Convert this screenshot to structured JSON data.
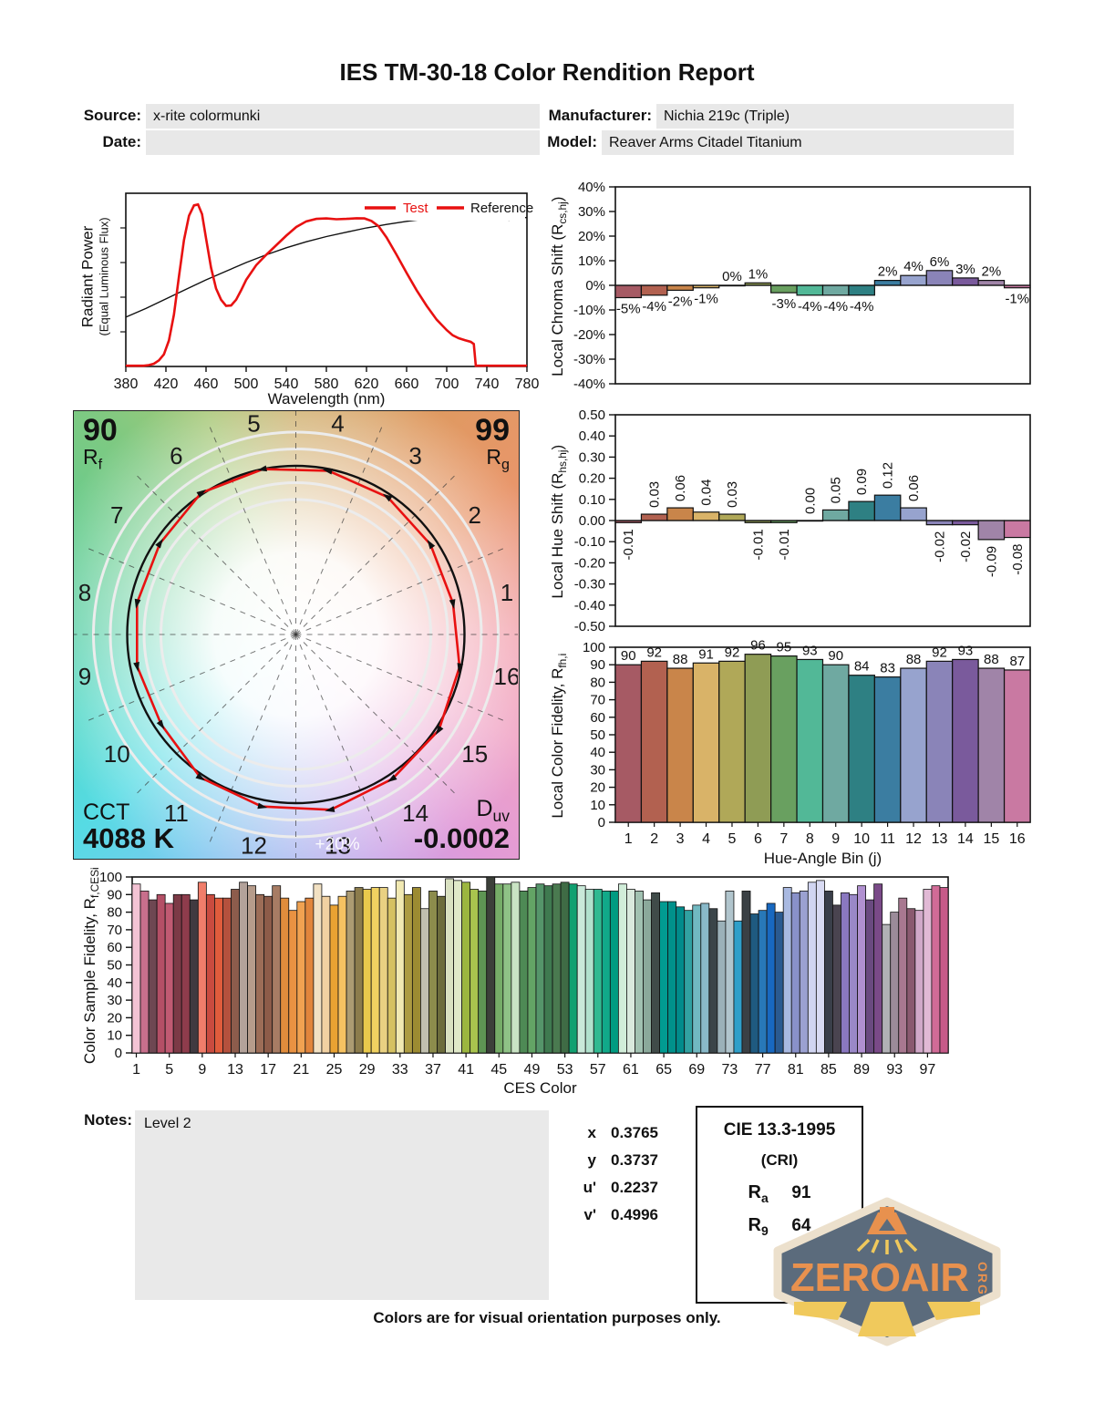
{
  "title": "IES TM-30-18 Color Rendition Report",
  "header": {
    "source_label": "Source:",
    "source_value": "x-rite colormunki",
    "manufacturer_label": "Manufacturer:",
    "manufacturer_value": "Nichia 219c (Triple)",
    "date_label": "Date:",
    "date_value": "",
    "model_label": "Model:",
    "model_value": "Reaver Arms Citadel Titanium"
  },
  "cvg": {
    "rf_value": "90",
    "rf_letter": "R",
    "rf_sub": "f",
    "rg_value": "99",
    "rg_letter": "R",
    "rg_sub": "g",
    "cct_label": "CCT",
    "cct_value": "4088 K",
    "duv_letter": "D",
    "duv_sub": "uv",
    "duv_value": "-0.0002",
    "ring_label": "+20%",
    "bins": [
      "1",
      "2",
      "3",
      "4",
      "5",
      "6",
      "7",
      "8",
      "9",
      "10",
      "11",
      "12",
      "13",
      "14",
      "15",
      "16"
    ]
  },
  "hue_bin_colors": [
    "#a65a64",
    "#b26150",
    "#c9854a",
    "#d9b368",
    "#b0a858",
    "#8f9c55",
    "#69a060",
    "#52b897",
    "#6fa9a1",
    "#2e8083",
    "#3b7da1",
    "#97a3ce",
    "#8a84b8",
    "#7a5a9c",
    "#a084a8",
    "#c979a2"
  ],
  "chart_data": {
    "spd": {
      "type": "line",
      "xlabel": "Wavelength (nm)",
      "ylabel": "Radiant Power",
      "ylabel2": "(Equal Luminous Flux)",
      "xlim": [
        380,
        780
      ],
      "ylim": [
        0,
        1
      ],
      "x_ticks": [
        380,
        420,
        460,
        500,
        540,
        580,
        620,
        660,
        700,
        740,
        780
      ],
      "legend": [
        {
          "label": "Test",
          "color": "#e81111"
        },
        {
          "label": "Reference",
          "color": "#111111"
        }
      ],
      "series": [
        {
          "name": "Test",
          "color": "#e81111",
          "width": 2.6,
          "x": [
            380,
            398,
            403,
            408,
            413,
            418,
            423,
            428,
            433,
            438,
            443,
            448,
            452,
            456,
            460,
            465,
            470,
            475,
            480,
            485,
            490,
            495,
            500,
            510,
            520,
            530,
            540,
            550,
            560,
            570,
            580,
            590,
            600,
            610,
            618,
            625,
            632,
            640,
            650,
            660,
            670,
            680,
            690,
            700,
            706,
            712,
            718,
            724,
            727,
            729,
            780
          ],
          "y": [
            0.004,
            0.004,
            0.008,
            0.016,
            0.035,
            0.07,
            0.15,
            0.3,
            0.52,
            0.73,
            0.87,
            0.93,
            0.935,
            0.88,
            0.74,
            0.57,
            0.45,
            0.385,
            0.35,
            0.352,
            0.385,
            0.44,
            0.5,
            0.585,
            0.645,
            0.7,
            0.755,
            0.805,
            0.838,
            0.852,
            0.855,
            0.85,
            0.852,
            0.856,
            0.855,
            0.84,
            0.81,
            0.745,
            0.645,
            0.54,
            0.44,
            0.35,
            0.27,
            0.21,
            0.18,
            0.163,
            0.152,
            0.142,
            0.13,
            0.004,
            0.004
          ]
        },
        {
          "name": "Reference",
          "color": "#111111",
          "width": 1.4,
          "x": [
            380,
            400,
            420,
            440,
            460,
            480,
            500,
            520,
            540,
            560,
            580,
            600,
            620,
            640,
            660,
            680,
            700,
            715,
            730,
            745,
            755,
            762,
            770,
            780
          ],
          "y": [
            0.285,
            0.335,
            0.39,
            0.445,
            0.5,
            0.55,
            0.6,
            0.645,
            0.685,
            0.72,
            0.75,
            0.775,
            0.8,
            0.82,
            0.838,
            0.852,
            0.862,
            0.866,
            0.866,
            0.862,
            0.858,
            0.845,
            0.856,
            0.86
          ]
        }
      ]
    },
    "chroma_shift": {
      "type": "bar",
      "ylabel_pre": "Local Chroma Shift (R",
      "ylabel_sub": "cs,hj",
      "ylabel_post": ")",
      "ylim": [
        -40,
        40
      ],
      "ytick_step": 10,
      "ytick_suffix": "%",
      "categories": [
        1,
        2,
        3,
        4,
        5,
        6,
        7,
        8,
        9,
        10,
        11,
        12,
        13,
        14,
        15,
        16
      ],
      "values": [
        -5,
        -4,
        -2,
        -1,
        0,
        1,
        -3,
        -4,
        -4,
        -4,
        2,
        4,
        6,
        3,
        2,
        -1
      ],
      "labels": [
        "-5%",
        "-4%",
        "-2%",
        "-1%",
        "0%",
        "1%",
        "-3%",
        "-4%",
        "-4%",
        "-4%",
        "2%",
        "4%",
        "6%",
        "3%",
        "2%",
        "-1%"
      ]
    },
    "hue_shift": {
      "type": "bar",
      "ylabel_pre": "Local Hue Shift (R",
      "ylabel_sub": "hs,hj",
      "ylabel_post": ")",
      "ylim": [
        -0.5,
        0.5
      ],
      "ytick_step": 0.1,
      "categories": [
        1,
        2,
        3,
        4,
        5,
        6,
        7,
        8,
        9,
        10,
        11,
        12,
        13,
        14,
        15,
        16
      ],
      "values": [
        -0.01,
        0.03,
        0.06,
        0.04,
        0.03,
        -0.01,
        -0.01,
        0.0,
        0.05,
        0.09,
        0.12,
        0.06,
        -0.02,
        -0.02,
        -0.09,
        -0.08
      ],
      "labels": [
        "-0.01",
        "0.03",
        "0.06",
        "0.04",
        "0.03",
        "-0.01",
        "-0.01",
        "0.00",
        "0.05",
        "0.09",
        "0.12",
        "0.06",
        "-0.02",
        "-0.02",
        "-0.09",
        "-0.08"
      ]
    },
    "local_fidelity": {
      "type": "bar",
      "ylabel_pre": "Local Color Fidelity, R",
      "ylabel_sub": "fh,i",
      "ylabel_post": "",
      "xlabel": "Hue-Angle Bin (j)",
      "ylim": [
        0,
        100
      ],
      "ytick_step": 10,
      "categories": [
        1,
        2,
        3,
        4,
        5,
        6,
        7,
        8,
        9,
        10,
        11,
        12,
        13,
        14,
        15,
        16
      ],
      "values": [
        90,
        92,
        88,
        91,
        92,
        96,
        95,
        93,
        90,
        84,
        83,
        88,
        92,
        93,
        88,
        87
      ]
    },
    "ces": {
      "type": "bar",
      "ylabel_pre": "Color Sample Fidelity, R",
      "ylabel_sub": "f,CESi",
      "ylabel_post": "",
      "xlabel": "CES Color",
      "ylim": [
        0,
        100
      ],
      "ytick_step": 10,
      "x_ticks": [
        1,
        5,
        9,
        13,
        17,
        21,
        25,
        29,
        33,
        37,
        41,
        45,
        49,
        53,
        57,
        61,
        65,
        69,
        73,
        77,
        81,
        85,
        89,
        93,
        97
      ],
      "values": [
        96,
        92,
        87,
        90,
        85,
        90,
        90,
        87,
        97,
        90,
        88,
        88,
        93,
        97,
        95,
        90,
        89,
        95,
        88,
        81,
        86,
        88,
        96,
        89,
        84,
        89,
        92,
        94,
        93,
        94,
        94,
        88,
        98,
        90,
        94,
        82,
        92,
        89,
        99,
        98,
        97,
        93,
        92,
        100,
        96,
        96,
        97,
        92,
        94,
        96,
        95,
        96,
        97,
        96,
        95,
        93,
        93,
        92,
        92,
        96,
        93,
        92,
        87,
        91,
        86,
        86,
        83,
        81,
        84,
        85,
        82,
        75,
        92,
        75,
        92,
        79,
        81,
        85,
        80,
        94,
        91,
        92,
        97,
        98,
        92,
        84,
        91,
        90,
        95,
        87,
        96,
        73,
        80,
        88,
        82,
        81,
        93,
        95,
        94
      ],
      "colors": [
        "#f3c3d4",
        "#c86f8c",
        "#6e4752",
        "#b44f66",
        "#c05a72",
        "#7c3a46",
        "#8e3c4c",
        "#403a40",
        "#f07d6a",
        "#c94b3f",
        "#e05c3c",
        "#b5513d",
        "#8d5c4c",
        "#b3a29a",
        "#b69c8b",
        "#9c6d57",
        "#8d5c49",
        "#a77c64",
        "#e18d3c",
        "#e99242",
        "#f1a251",
        "#e1853c",
        "#f2e1c3",
        "#f1d1a2",
        "#e9a232",
        "#f6c262",
        "#ac9b72",
        "#8c7c4c",
        "#e9c94c",
        "#f0d161",
        "#e9d182",
        "#d5c162",
        "#f1e9b2",
        "#ac9b42",
        "#9c8b32",
        "#c1c0af",
        "#8c8c4c",
        "#6c6c3c",
        "#d9e1c1",
        "#e0e9c9",
        "#9cb63f",
        "#a9c44e",
        "#5e9554",
        "#3c403a",
        "#76ad68",
        "#8fc286",
        "#c9e3c4",
        "#4e8a55",
        "#63a465",
        "#55956a",
        "#3f7a50",
        "#4a7a50",
        "#3f6b45",
        "#10a070",
        "#c9e9d9",
        "#b1e1cd",
        "#31b991",
        "#11a989",
        "#019b81",
        "#d1edd9",
        "#d9e9dd",
        "#a1c1b1",
        "#8ba99b",
        "#404b49",
        "#019b91",
        "#01918b",
        "#018b8b",
        "#31a1a1",
        "#71b9c1",
        "#89b9c9",
        "#3b4549",
        "#9bb1b9",
        "#b1c5cd",
        "#2f9fc9",
        "#3a4044",
        "#1f5a80",
        "#2878b8",
        "#1868c0",
        "#2a5a90",
        "#a9b9e1",
        "#8991c9",
        "#9ba1d1",
        "#d1d5f1",
        "#d9dbf3",
        "#3a3f4a",
        "#4a4450",
        "#8a78c0",
        "#9a88c8",
        "#b090d0",
        "#6a4a80",
        "#7a4a88",
        "#b1b1b5",
        "#9b8b99",
        "#a87890",
        "#8a5a70",
        "#d1a9c9",
        "#e1b9d5",
        "#d16b97",
        "#c75a89"
      ]
    }
  },
  "notes": {
    "label": "Notes:",
    "value": "Level 2"
  },
  "chromaticity": [
    {
      "label": "x",
      "value": "0.3765"
    },
    {
      "label": "y",
      "value": "0.3737"
    },
    {
      "label": "u'",
      "value": "0.2237"
    },
    {
      "label": "v'",
      "value": "0.4996"
    }
  ],
  "cie_box": {
    "title": "CIE 13.3-1995",
    "subtitle": "(CRI)",
    "rows": [
      {
        "letter": "R",
        "sub": "a",
        "value": "91"
      },
      {
        "letter": "R",
        "sub": "9",
        "value": "64"
      }
    ]
  },
  "logo": {
    "text": "ZEROAIR",
    "suffix": "ORG"
  },
  "caption": "Colors are for visual orientation purposes only."
}
